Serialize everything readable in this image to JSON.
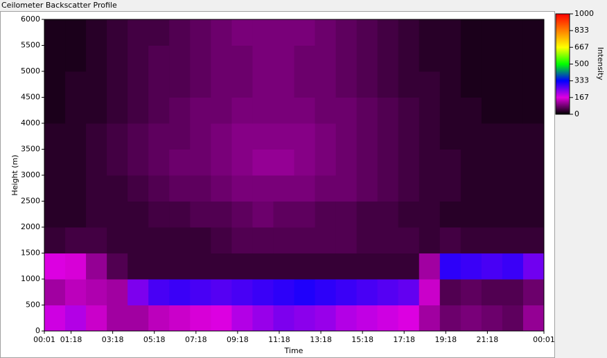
{
  "chart_data": {
    "type": "heatmap",
    "title": "Ceilometer Backscatter Profile",
    "x_label": "Time",
    "y_label": "Height (m)",
    "colorbar_label": "Intensity",
    "xlim": [
      0,
      1440
    ],
    "xticks": [
      {
        "value": 0,
        "label": "00:01"
      },
      {
        "value": 77,
        "label": "01:18"
      },
      {
        "value": 197,
        "label": "03:18"
      },
      {
        "value": 317,
        "label": "05:18"
      },
      {
        "value": 437,
        "label": "07:18"
      },
      {
        "value": 557,
        "label": "09:18"
      },
      {
        "value": 677,
        "label": "11:18"
      },
      {
        "value": 797,
        "label": "13:18"
      },
      {
        "value": 917,
        "label": "15:18"
      },
      {
        "value": 1037,
        "label": "17:18"
      },
      {
        "value": 1157,
        "label": "19:18"
      },
      {
        "value": 1277,
        "label": "21:18"
      },
      {
        "value": 1440,
        "label": "00:01"
      }
    ],
    "ylim": [
      0,
      6000
    ],
    "yticks": [
      0,
      500,
      1000,
      1500,
      2000,
      2500,
      3000,
      3500,
      4000,
      4500,
      5000,
      5500,
      6000
    ],
    "zlim": [
      0,
      1000
    ],
    "zticks": [
      0,
      167,
      333,
      500,
      667,
      833,
      1000
    ],
    "colors": [
      "#000000",
      "#e000e0",
      "#0000ff",
      "#00ff00",
      "#ffff00",
      "#ff8000",
      "#ff0000"
    ],
    "x_bins": [
      0,
      60,
      120,
      180,
      240,
      300,
      360,
      420,
      480,
      540,
      600,
      660,
      720,
      780,
      840,
      900,
      960,
      1020,
      1080,
      1140,
      1200,
      1260,
      1320,
      1380,
      1440
    ],
    "y_bins": [
      0,
      500,
      1000,
      1500,
      2000,
      2500,
      3000,
      3500,
      4000,
      4500,
      5000,
      5500,
      6000
    ],
    "z": [
      [
        180,
        200,
        150,
        120,
        120,
        140,
        150,
        160,
        170,
        200,
        220,
        240,
        230,
        220,
        200,
        190,
        180,
        170,
        120,
        80,
        90,
        80,
        70,
        110
      ],
      [
        120,
        140,
        130,
        120,
        240,
        280,
        290,
        280,
        270,
        280,
        290,
        300,
        310,
        300,
        290,
        280,
        270,
        260,
        150,
        60,
        70,
        60,
        60,
        80
      ],
      [
        170,
        160,
        110,
        60,
        40,
        40,
        40,
        40,
        40,
        40,
        40,
        40,
        40,
        40,
        40,
        40,
        40,
        40,
        120,
        300,
        290,
        280,
        290,
        250
      ],
      [
        40,
        50,
        50,
        40,
        40,
        40,
        40,
        40,
        50,
        60,
        60,
        60,
        60,
        60,
        60,
        50,
        50,
        50,
        40,
        50,
        40,
        40,
        40,
        40
      ],
      [
        30,
        30,
        40,
        40,
        40,
        50,
        50,
        60,
        60,
        70,
        80,
        70,
        70,
        60,
        60,
        50,
        50,
        40,
        40,
        30,
        30,
        30,
        30,
        30
      ],
      [
        30,
        30,
        40,
        40,
        50,
        60,
        70,
        70,
        80,
        90,
        90,
        90,
        90,
        80,
        80,
        70,
        60,
        50,
        40,
        40,
        30,
        30,
        30,
        30
      ],
      [
        30,
        30,
        40,
        50,
        60,
        70,
        80,
        80,
        90,
        100,
        110,
        110,
        100,
        90,
        80,
        70,
        60,
        50,
        40,
        40,
        30,
        30,
        30,
        30
      ],
      [
        30,
        30,
        40,
        50,
        60,
        70,
        70,
        80,
        90,
        100,
        100,
        100,
        100,
        90,
        80,
        70,
        60,
        50,
        40,
        30,
        30,
        30,
        30,
        30
      ],
      [
        20,
        30,
        30,
        40,
        50,
        60,
        70,
        80,
        80,
        90,
        90,
        90,
        90,
        80,
        80,
        70,
        60,
        50,
        40,
        30,
        30,
        20,
        20,
        20
      ],
      [
        20,
        30,
        30,
        40,
        50,
        60,
        60,
        70,
        80,
        80,
        90,
        90,
        80,
        80,
        70,
        60,
        50,
        40,
        40,
        30,
        20,
        20,
        20,
        20
      ],
      [
        20,
        20,
        30,
        40,
        50,
        60,
        60,
        70,
        80,
        80,
        90,
        90,
        80,
        80,
        70,
        60,
        50,
        40,
        30,
        30,
        20,
        20,
        20,
        20
      ],
      [
        20,
        20,
        30,
        40,
        50,
        50,
        60,
        70,
        80,
        90,
        90,
        90,
        90,
        80,
        70,
        60,
        50,
        40,
        30,
        30,
        20,
        20,
        20,
        20
      ]
    ]
  }
}
